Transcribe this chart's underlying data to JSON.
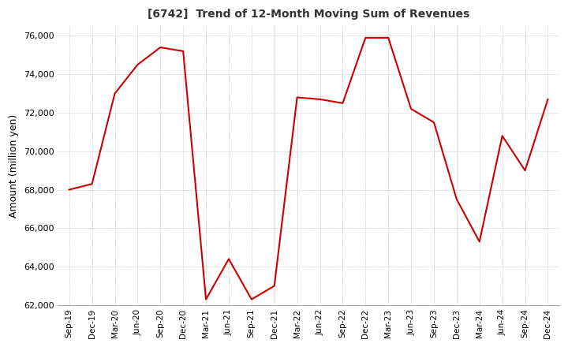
{
  "title": "[6742]  Trend of 12-Month Moving Sum of Revenues",
  "ylabel": "Amount (million yen)",
  "line_color": "#cc0000",
  "background_color": "#ffffff",
  "plot_bg_color": "#ffffff",
  "grid_color": "#aaaaaa",
  "ylim": [
    62000,
    76500
  ],
  "yticks": [
    62000,
    64000,
    66000,
    68000,
    70000,
    72000,
    74000,
    76000
  ],
  "x_labels": [
    "Sep-19",
    "Dec-19",
    "Mar-20",
    "Jun-20",
    "Sep-20",
    "Dec-20",
    "Mar-21",
    "Jun-21",
    "Sep-21",
    "Dec-21",
    "Mar-22",
    "Jun-22",
    "Sep-22",
    "Dec-22",
    "Mar-23",
    "Jun-23",
    "Sep-23",
    "Dec-23",
    "Mar-24",
    "Jun-24",
    "Sep-24",
    "Dec-24"
  ],
  "values": [
    68000,
    68300,
    73000,
    74500,
    75400,
    75200,
    62300,
    64400,
    62300,
    63000,
    72800,
    72700,
    72500,
    75900,
    75900,
    72200,
    71500,
    67500,
    65300,
    70800,
    69000,
    72700
  ]
}
